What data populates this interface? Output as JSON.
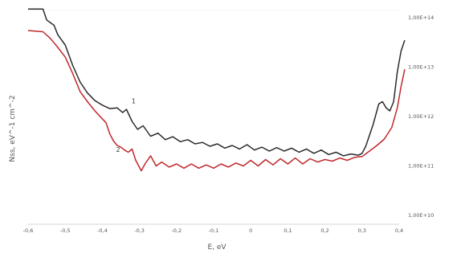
{
  "chart_data": {
    "type": "line",
    "title": "",
    "xlabel": "E, eV",
    "ylabel": "Nss, eV^-1 cm^-2",
    "y_scale": "log",
    "y_axis_side": "right",
    "xlim": [
      -0.6,
      0.4
    ],
    "ylim": [
      10000000000.0,
      100000000000000.0
    ],
    "x_ticks": [
      "-0,6",
      "-0,5",
      "-0,4",
      "-0,3",
      "-0,2",
      "-0,1",
      "0",
      "0,1",
      "0,2",
      "0,3",
      "0,4"
    ],
    "y_ticks": [
      "1,00E+10",
      "1,00E+11",
      "1,00E+12",
      "1,00E+13",
      "1,00E+14"
    ],
    "grid": false,
    "legend": "none",
    "series": [
      {
        "name": "1",
        "color": "#2b2b2b",
        "points": [
          [
            -0.6,
            150000000000000.0
          ],
          [
            -0.56,
            150000000000000.0
          ],
          [
            -0.55,
            90000000000000.0
          ],
          [
            -0.53,
            70000000000000.0
          ],
          [
            -0.52,
            45000000000000.0
          ],
          [
            -0.5,
            28000000000000.0
          ],
          [
            -0.48,
            11000000000000.0
          ],
          [
            -0.46,
            5000000000000.0
          ],
          [
            -0.44,
            3000000000000.0
          ],
          [
            -0.42,
            2100000000000.0
          ],
          [
            -0.4,
            1700000000000.0
          ],
          [
            -0.38,
            1450000000000.0
          ],
          [
            -0.36,
            1500000000000.0
          ],
          [
            -0.345,
            1200000000000.0
          ],
          [
            -0.335,
            1400000000000.0
          ],
          [
            -0.32,
            800000000000.0
          ],
          [
            -0.305,
            550000000000.0
          ],
          [
            -0.29,
            650000000000.0
          ],
          [
            -0.27,
            400000000000.0
          ],
          [
            -0.25,
            460000000000.0
          ],
          [
            -0.23,
            340000000000.0
          ],
          [
            -0.21,
            390000000000.0
          ],
          [
            -0.19,
            310000000000.0
          ],
          [
            -0.17,
            340000000000.0
          ],
          [
            -0.15,
            280000000000.0
          ],
          [
            -0.13,
            300000000000.0
          ],
          [
            -0.11,
            250000000000.0
          ],
          [
            -0.09,
            280000000000.0
          ],
          [
            -0.07,
            230000000000.0
          ],
          [
            -0.05,
            260000000000.0
          ],
          [
            -0.03,
            220000000000.0
          ],
          [
            -0.01,
            270000000000.0
          ],
          [
            0.01,
            210000000000.0
          ],
          [
            0.03,
            240000000000.0
          ],
          [
            0.05,
            200000000000.0
          ],
          [
            0.07,
            235000000000.0
          ],
          [
            0.09,
            200000000000.0
          ],
          [
            0.11,
            230000000000.0
          ],
          [
            0.13,
            190000000000.0
          ],
          [
            0.15,
            220000000000.0
          ],
          [
            0.17,
            180000000000.0
          ],
          [
            0.19,
            210000000000.0
          ],
          [
            0.21,
            170000000000.0
          ],
          [
            0.23,
            190000000000.0
          ],
          [
            0.25,
            160000000000.0
          ],
          [
            0.27,
            175000000000.0
          ],
          [
            0.29,
            165000000000.0
          ],
          [
            0.3,
            180000000000.0
          ],
          [
            0.31,
            250000000000.0
          ],
          [
            0.33,
            700000000000.0
          ],
          [
            0.345,
            1800000000000.0
          ],
          [
            0.355,
            2000000000000.0
          ],
          [
            0.365,
            1500000000000.0
          ],
          [
            0.375,
            1300000000000.0
          ],
          [
            0.385,
            2000000000000.0
          ],
          [
            0.395,
            8000000000000.0
          ],
          [
            0.405,
            21000000000000.0
          ],
          [
            0.415,
            35000000000000.0
          ]
        ]
      },
      {
        "name": "2",
        "color": "#c0282d",
        "points": [
          [
            -0.6,
            55000000000000.0
          ],
          [
            -0.56,
            52000000000000.0
          ],
          [
            -0.54,
            38000000000000.0
          ],
          [
            -0.52,
            25000000000000.0
          ],
          [
            -0.5,
            16000000000000.0
          ],
          [
            -0.48,
            7500000000000.0
          ],
          [
            -0.46,
            3200000000000.0
          ],
          [
            -0.44,
            2000000000000.0
          ],
          [
            -0.42,
            1300000000000.0
          ],
          [
            -0.4,
            900000000000.0
          ],
          [
            -0.39,
            750000000000.0
          ],
          [
            -0.38,
            450000000000.0
          ],
          [
            -0.37,
            320000000000.0
          ],
          [
            -0.36,
            260000000000.0
          ],
          [
            -0.35,
            240000000000.0
          ],
          [
            -0.34,
            210000000000.0
          ],
          [
            -0.33,
            190000000000.0
          ],
          [
            -0.32,
            220000000000.0
          ],
          [
            -0.31,
            130000000000.0
          ],
          [
            -0.295,
            80000000000.0
          ],
          [
            -0.285,
            110000000000.0
          ],
          [
            -0.27,
            160000000000.0
          ],
          [
            -0.255,
            100000000000.0
          ],
          [
            -0.24,
            120000000000.0
          ],
          [
            -0.22,
            95000000000.0
          ],
          [
            -0.2,
            110000000000.0
          ],
          [
            -0.18,
            90000000000.0
          ],
          [
            -0.16,
            110000000000.0
          ],
          [
            -0.14,
            90000000000.0
          ],
          [
            -0.12,
            105000000000.0
          ],
          [
            -0.1,
            90000000000.0
          ],
          [
            -0.08,
            110000000000.0
          ],
          [
            -0.06,
            95000000000.0
          ],
          [
            -0.04,
            115000000000.0
          ],
          [
            -0.02,
            100000000000.0
          ],
          [
            0.0,
            130000000000.0
          ],
          [
            0.02,
            100000000000.0
          ],
          [
            0.04,
            135000000000.0
          ],
          [
            0.06,
            105000000000.0
          ],
          [
            0.08,
            140000000000.0
          ],
          [
            0.1,
            110000000000.0
          ],
          [
            0.12,
            145000000000.0
          ],
          [
            0.14,
            110000000000.0
          ],
          [
            0.16,
            140000000000.0
          ],
          [
            0.18,
            120000000000.0
          ],
          [
            0.2,
            135000000000.0
          ],
          [
            0.22,
            125000000000.0
          ],
          [
            0.24,
            145000000000.0
          ],
          [
            0.26,
            130000000000.0
          ],
          [
            0.28,
            150000000000.0
          ],
          [
            0.3,
            155000000000.0
          ],
          [
            0.32,
            200000000000.0
          ],
          [
            0.34,
            260000000000.0
          ],
          [
            0.36,
            350000000000.0
          ],
          [
            0.38,
            600000000000.0
          ],
          [
            0.395,
            1500000000000.0
          ],
          [
            0.405,
            4000000000000.0
          ],
          [
            0.415,
            9000000000000.0
          ]
        ]
      }
    ],
    "annotations": [
      "1",
      "2"
    ]
  }
}
